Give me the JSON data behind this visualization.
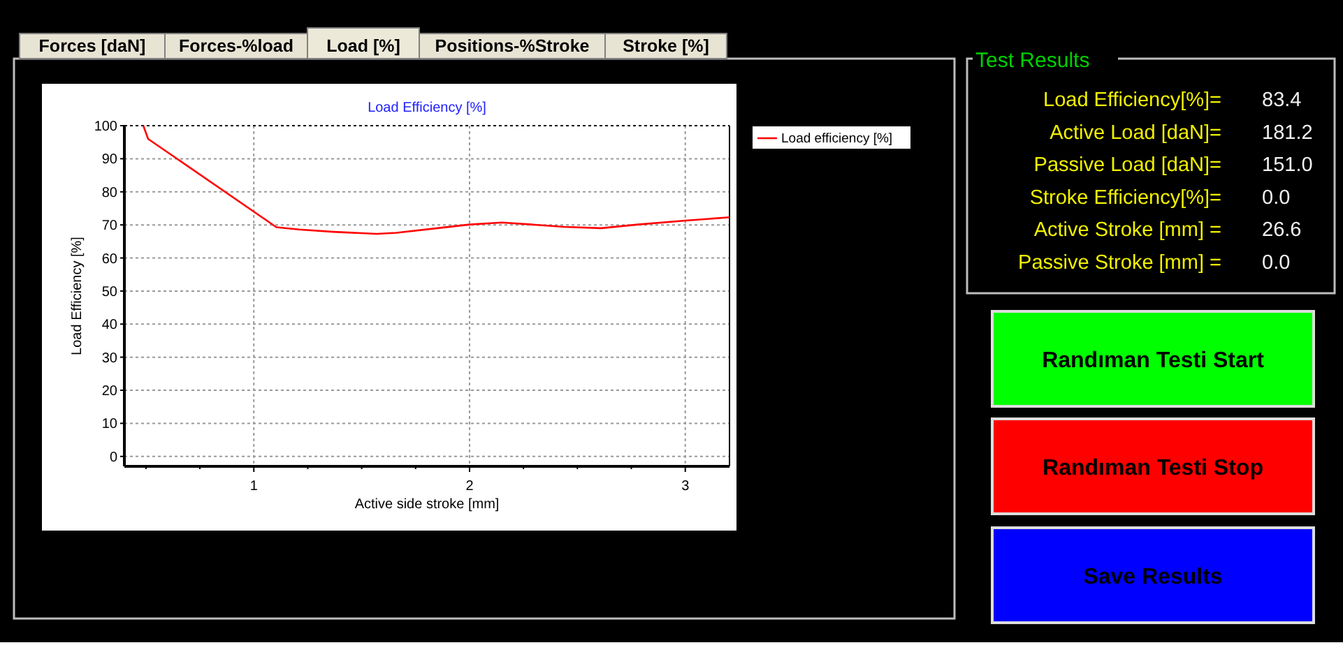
{
  "chart_data": [
    {
      "type": "line",
      "title": "Load Efficiency [%]",
      "xlabel": "Active side stroke [mm]",
      "ylabel": "Load Efficiency [%]",
      "annotations": [
        "Forces [daN]",
        "Forces-%load",
        "Load  [%]",
        "Positions-%Stroke",
        "Stroke  [%]"
      ],
      "x": [
        0.488,
        0.51,
        1.105,
        1.21,
        1.37,
        1.57,
        1.66,
        1.85,
        2.0,
        2.15,
        2.29,
        2.44,
        2.61,
        2.78,
        3.0,
        3.205
      ],
      "series": [
        {
          "name": "Load efficiency [%]",
          "color": "#ff0000",
          "values": [
            100,
            96,
            69.3,
            68.6,
            67.9,
            67.3,
            67.6,
            69,
            70.1,
            70.7,
            70.1,
            69.4,
            69,
            70.1,
            71.3,
            72.3
          ]
        }
      ],
      "xlim": [
        0.4,
        3.205
      ],
      "ylim": [
        -3,
        100
      ],
      "xticks": [
        {
          "value": 0.5,
          "label": null
        },
        {
          "value": 0.75,
          "label": null
        },
        1,
        {
          "value": 1.25,
          "label": null
        },
        {
          "value": 1.5,
          "label": null
        },
        {
          "value": 1.75,
          "label": null
        },
        2,
        {
          "value": 2.25,
          "label": null
        },
        {
          "value": 2.5,
          "label": null
        },
        {
          "value": 2.75,
          "label": null
        },
        3
      ],
      "yticks": [
        0,
        10,
        20,
        30,
        40,
        50,
        60,
        70,
        80,
        90,
        100
      ],
      "grid": true,
      "legend": "top right",
      "marker": "none",
      "line_style": "solid"
    },
    {
      "type": "other",
      "title": "Test Results",
      "categories": [
        "Load Efficiency[%]=",
        "Active Load [daN]=",
        "Passive Load [daN]=",
        "Stroke Efficiency[%]=",
        "Active Stroke [mm] =",
        "Passive Stroke [mm] ="
      ],
      "value_labels": [
        "83.4",
        "181.2",
        "151.0",
        "0.0",
        "26.6",
        "0.0"
      ],
      "annotations": [
        "Randıman Testi Start",
        "Randıman Testi Stop",
        "Save Results"
      ]
    }
  ]
}
